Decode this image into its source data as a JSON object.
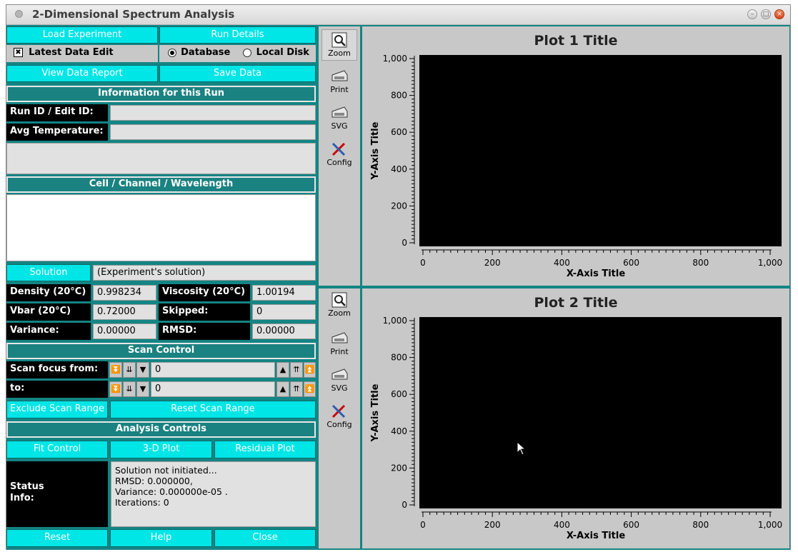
{
  "window": {
    "title": "2-Dimensional Spectrum Analysis",
    "controls": {
      "minimize": "–",
      "maximize": "□",
      "close": "×"
    }
  },
  "left": {
    "load_experiment": "Load Experiment",
    "run_details": "Run Details",
    "latest_data_edit": "Latest Data Edit",
    "latest_checked": "✖",
    "database": "Database",
    "local_disk": "Local Disk",
    "view_data_report": "View Data Report",
    "save_data": "Save Data",
    "info_header": "Information for this Run",
    "run_id_label": "Run ID / Edit ID:",
    "run_id_value": "",
    "avg_temp_label": "Avg Temperature:",
    "avg_temp_value": "",
    "ccw_header": "Cell / Channel / Wavelength",
    "solution_button": "Solution",
    "solution_value": "(Experiment's solution)",
    "density_label": "Density (20°C)",
    "density_value": "0.998234",
    "viscosity_label": "Viscosity (20°C)",
    "viscosity_value": "1.00194",
    "vbar_label": "Vbar (20°C)",
    "vbar_value": "0.72000",
    "skipped_label": "Skipped:",
    "skipped_value": "0",
    "variance_label": "Variance:",
    "variance_value": "0.00000",
    "rmsd_label": "RMSD:",
    "rmsd_value": "0.00000",
    "scan_header": "Scan Control",
    "scan_from_label": "Scan focus from:",
    "scan_from_value": "0",
    "scan_to_label": "to:",
    "scan_to_value": "0",
    "exclude_scan": "Exclude Scan Range",
    "reset_scan": "Reset Scan Range",
    "analysis_header": "Analysis Controls",
    "fit_control": "Fit Control",
    "plot_3d": "3-D Plot",
    "residual_plot": "Residual Plot",
    "status_label_1": "Status",
    "status_label_2": "Info:",
    "status_lines": [
      "Solution not initiated...",
      "RMSD:  0.000000,",
      "Variance: 0.000000e-05 .",
      "Iterations:  0"
    ],
    "reset": "Reset",
    "help": "Help",
    "close": "Close"
  },
  "tools": {
    "zoom": "Zoom",
    "print": "Print",
    "svg": "SVG",
    "config": "Config"
  },
  "plots": [
    {
      "title": "Plot 1 Title",
      "xlabel": "X-Axis Title",
      "ylabel": "Y-Axis Title",
      "xticks": [
        "0",
        "200",
        "400",
        "600",
        "800",
        "1,000"
      ],
      "yticks": [
        "0",
        "200",
        "400",
        "600",
        "800",
        "1,000"
      ]
    },
    {
      "title": "Plot 2 Title",
      "xlabel": "X-Axis Title",
      "ylabel": "Y-Axis Title",
      "xticks": [
        "0",
        "200",
        "400",
        "600",
        "800",
        "1,000"
      ],
      "yticks": [
        "0",
        "200",
        "400",
        "600",
        "800",
        "1,000"
      ]
    }
  ]
}
